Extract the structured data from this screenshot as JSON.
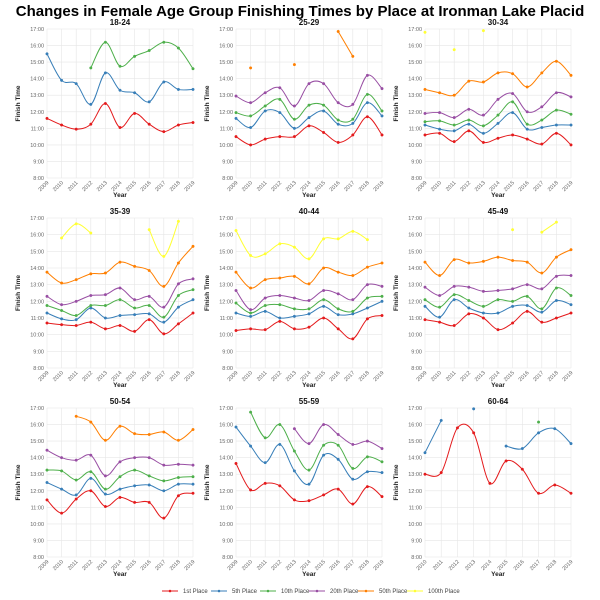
{
  "title": "Changes in Female Age Group Finishing Times by Place at Ironman Lake Placid",
  "chart_data": {
    "type": "line",
    "title": "Changes in Female Age Group Finishing Times by Place at Ironman Lake Placid",
    "xlabel": "Year",
    "ylabel": "Finish Time",
    "ylim": [
      8,
      17
    ],
    "yticks": [
      "8:00",
      "9:00",
      "10:00",
      "11:00",
      "12:00",
      "13:00",
      "14:00",
      "15:00",
      "16:00",
      "17:00"
    ],
    "y_units": "hours",
    "grid": true,
    "legend_placement": "bottom",
    "series_names": [
      "1st Place",
      "5th Place",
      "10th Place",
      "20th Place",
      "50th Place",
      "100th Place"
    ],
    "colors": [
      "#e41a1c",
      "#377eb8",
      "#4daf4a",
      "#984ea3",
      "#ff7f00",
      "#ffff33"
    ],
    "panels": [
      {
        "title": "18-24",
        "x": [
          2009,
          2010,
          2011,
          2012,
          2013,
          2014,
          2015,
          2016,
          2017,
          2018,
          2019
        ],
        "series": [
          [
            11.6,
            11.2,
            10.95,
            11.25,
            12.5,
            11.05,
            11.9,
            11.25,
            10.8,
            11.2,
            11.35
          ],
          [
            15.5,
            13.9,
            13.7,
            12.45,
            14.35,
            13.3,
            13.15,
            12.6,
            13.8,
            13.35,
            13.35
          ],
          [
            null,
            null,
            null,
            14.65,
            16.2,
            14.75,
            15.35,
            15.7,
            16.2,
            15.85,
            14.6
          ],
          [],
          [],
          []
        ]
      },
      {
        "title": "25-29",
        "x": [
          2009,
          2010,
          2011,
          2012,
          2013,
          2014,
          2015,
          2016,
          2017,
          2018,
          2019
        ],
        "series": [
          [
            10.5,
            10.0,
            10.35,
            10.5,
            10.5,
            11.15,
            10.75,
            10.15,
            10.6,
            11.7,
            10.6
          ],
          [
            11.6,
            11.05,
            12.05,
            11.95,
            11.0,
            11.65,
            12.05,
            11.25,
            11.3,
            12.55,
            11.75
          ],
          [
            11.95,
            11.75,
            12.35,
            12.75,
            11.55,
            12.4,
            12.4,
            11.5,
            11.55,
            13.05,
            12.05
          ],
          [
            12.95,
            12.55,
            13.15,
            13.45,
            12.35,
            13.7,
            13.7,
            12.55,
            12.45,
            14.2,
            13.4
          ],
          [
            null,
            14.65,
            null,
            null,
            14.85,
            null,
            null,
            16.85,
            15.35,
            null,
            null
          ],
          []
        ]
      },
      {
        "title": "30-34",
        "x": [
          2009,
          2010,
          2011,
          2012,
          2013,
          2014,
          2015,
          2016,
          2017,
          2018,
          2019
        ],
        "series": [
          [
            10.6,
            10.7,
            10.2,
            10.85,
            10.15,
            10.4,
            10.6,
            10.35,
            10.05,
            10.7,
            10.0
          ],
          [
            11.2,
            10.95,
            10.85,
            11.25,
            10.7,
            11.3,
            11.95,
            10.95,
            11.05,
            11.2,
            11.2
          ],
          [
            11.4,
            11.45,
            11.2,
            11.5,
            11.15,
            11.8,
            12.6,
            11.25,
            11.5,
            12.1,
            11.85
          ],
          [
            11.9,
            11.95,
            11.65,
            12.15,
            11.8,
            12.75,
            13.1,
            12.0,
            12.3,
            13.15,
            12.9
          ],
          [
            13.35,
            13.15,
            13.0,
            13.85,
            13.8,
            14.35,
            14.3,
            13.5,
            14.35,
            15.05,
            14.2
          ],
          [
            16.8,
            null,
            15.75,
            null,
            16.9,
            null,
            null,
            null,
            null,
            null,
            null
          ]
        ]
      },
      {
        "title": "35-39",
        "x": [
          2009,
          2010,
          2011,
          2012,
          2013,
          2014,
          2015,
          2016,
          2017,
          2018,
          2019
        ],
        "series": [
          [
            10.7,
            10.6,
            10.55,
            10.75,
            10.35,
            10.55,
            10.2,
            10.9,
            10.05,
            10.65,
            11.3
          ],
          [
            11.3,
            10.95,
            10.9,
            11.6,
            11.0,
            11.15,
            11.2,
            11.25,
            10.75,
            11.65,
            12.1
          ],
          [
            11.75,
            11.45,
            11.15,
            11.75,
            11.75,
            12.1,
            11.6,
            11.75,
            11.05,
            12.35,
            12.7
          ],
          [
            12.3,
            11.8,
            12.0,
            12.35,
            12.4,
            12.8,
            12.1,
            12.3,
            11.65,
            13.05,
            13.35
          ],
          [
            13.75,
            13.1,
            13.3,
            13.65,
            13.7,
            14.35,
            14.1,
            13.85,
            12.9,
            14.3,
            15.3
          ],
          [
            null,
            15.8,
            16.65,
            16.1,
            null,
            null,
            null,
            16.3,
            14.7,
            16.8,
            null
          ]
        ]
      },
      {
        "title": "40-44",
        "x": [
          2009,
          2010,
          2011,
          2012,
          2013,
          2014,
          2015,
          2016,
          2017,
          2018,
          2019
        ],
        "series": [
          [
            10.25,
            10.35,
            10.3,
            10.8,
            10.35,
            10.45,
            11.0,
            10.35,
            9.75,
            10.95,
            11.15
          ],
          [
            11.3,
            11.1,
            11.4,
            11.0,
            11.1,
            11.25,
            11.7,
            11.2,
            11.25,
            11.6,
            12.0
          ],
          [
            11.9,
            11.3,
            11.75,
            11.8,
            11.55,
            11.55,
            12.1,
            11.55,
            11.4,
            12.2,
            12.3
          ],
          [
            12.65,
            11.5,
            12.2,
            12.35,
            12.2,
            12.05,
            12.65,
            12.45,
            12.1,
            13.0,
            12.9
          ],
          [
            13.75,
            12.8,
            13.3,
            13.4,
            13.5,
            13.05,
            14.0,
            13.75,
            13.55,
            14.05,
            14.3
          ],
          [
            16.25,
            14.75,
            14.85,
            15.45,
            15.25,
            14.55,
            15.75,
            15.75,
            16.2,
            15.7,
            null
          ]
        ]
      },
      {
        "title": "45-49",
        "x": [
          2009,
          2010,
          2011,
          2012,
          2013,
          2014,
          2015,
          2016,
          2017,
          2018,
          2019
        ],
        "series": [
          [
            10.9,
            10.75,
            10.55,
            11.25,
            11.0,
            10.3,
            10.7,
            11.4,
            10.75,
            11.0,
            11.3
          ],
          [
            11.7,
            11.05,
            12.1,
            11.6,
            11.3,
            11.3,
            11.7,
            11.75,
            11.35,
            12.05,
            11.8
          ],
          [
            12.1,
            11.65,
            12.4,
            12.05,
            11.7,
            12.1,
            12.0,
            12.3,
            11.55,
            12.8,
            12.35
          ],
          [
            12.85,
            12.35,
            12.9,
            12.85,
            12.6,
            12.65,
            12.75,
            13.0,
            12.75,
            13.5,
            13.55
          ],
          [
            14.35,
            13.55,
            14.5,
            14.3,
            14.4,
            14.65,
            14.45,
            14.35,
            13.7,
            14.65,
            15.1
          ],
          [
            null,
            null,
            null,
            null,
            null,
            null,
            16.3,
            null,
            16.15,
            16.75,
            null
          ]
        ]
      },
      {
        "title": "50-54",
        "x": [
          2009,
          2010,
          2011,
          2012,
          2013,
          2014,
          2015,
          2016,
          2017,
          2018,
          2019
        ],
        "series": [
          [
            11.45,
            10.65,
            11.5,
            12.0,
            11.05,
            11.6,
            11.3,
            11.3,
            10.35,
            11.7,
            11.85
          ],
          [
            12.5,
            12.1,
            11.75,
            12.75,
            11.8,
            12.1,
            12.3,
            12.35,
            12.0,
            12.4,
            12.4
          ],
          [
            13.25,
            13.2,
            12.65,
            13.15,
            12.1,
            12.85,
            13.25,
            12.9,
            12.6,
            12.8,
            12.85
          ],
          [
            14.45,
            14.0,
            13.85,
            14.15,
            12.9,
            13.75,
            14.0,
            14.0,
            13.55,
            13.6,
            13.55
          ],
          [
            null,
            null,
            16.5,
            16.15,
            15.05,
            15.9,
            15.45,
            15.4,
            15.55,
            15.05,
            15.7
          ],
          []
        ]
      },
      {
        "title": "55-59",
        "x": [
          2009,
          2010,
          2011,
          2012,
          2013,
          2014,
          2015,
          2016,
          2017,
          2018,
          2019
        ],
        "series": [
          [
            13.65,
            12.05,
            12.45,
            12.3,
            11.45,
            11.4,
            11.75,
            12.1,
            11.2,
            12.25,
            11.65
          ],
          [
            15.85,
            14.7,
            13.7,
            14.8,
            13.2,
            12.4,
            14.15,
            13.9,
            12.7,
            13.15,
            13.1
          ],
          [
            null,
            16.75,
            15.2,
            16.0,
            14.4,
            13.25,
            14.75,
            14.75,
            13.35,
            14.05,
            13.75
          ],
          [
            null,
            null,
            null,
            null,
            15.75,
            14.85,
            16.0,
            15.4,
            14.8,
            15.0,
            14.55
          ],
          [],
          []
        ]
      },
      {
        "title": "60-64",
        "x": [
          2010,
          2011,
          2012,
          2013,
          2014,
          2015,
          2016,
          2017,
          2018,
          2019
        ],
        "series": [
          [
            13.0,
            13.1,
            15.8,
            15.5,
            12.45,
            13.8,
            13.3,
            11.85,
            12.35,
            11.85
          ],
          [
            14.3,
            16.25,
            null,
            16.95,
            null,
            14.7,
            14.55,
            15.5,
            15.75,
            14.85
          ],
          [
            null,
            null,
            null,
            null,
            null,
            null,
            null,
            16.15,
            null,
            null
          ],
          [],
          [],
          []
        ]
      }
    ]
  }
}
